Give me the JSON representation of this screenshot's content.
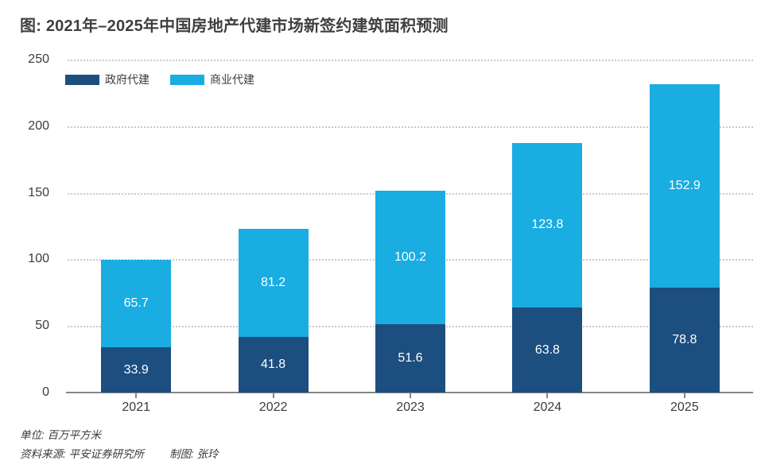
{
  "title": "图: 2021年–2025年中国房地产代建市场新签约建筑面积预测",
  "footer": {
    "unit": "单位: 百万平方米",
    "source": "资料来源: 平安证券研究所",
    "credit": "制图: 张玲"
  },
  "colors": {
    "government": "#1c4e7f",
    "commercial": "#19ade2",
    "axis_line": "#868686",
    "gridline": "#c9c9c9",
    "text": "#3c3c3c",
    "value_label": "#ffffff"
  },
  "chart_data": {
    "type": "bar",
    "stacked": true,
    "title": "图: 2021年–2025年中国房地产代建市场新签约建筑面积预测",
    "xlabel": "",
    "ylabel": "",
    "unit": "百万平方米",
    "categories": [
      "2021",
      "2022",
      "2023",
      "2024",
      "2025"
    ],
    "series": [
      {
        "name": "政府代建",
        "color": "#1c4e7f",
        "values": [
          33.9,
          41.8,
          51.6,
          63.8,
          78.8
        ]
      },
      {
        "name": "商业代建",
        "color": "#19ade2",
        "values": [
          65.7,
          81.2,
          100.2,
          123.8,
          152.9
        ]
      }
    ],
    "ylim": [
      0,
      250
    ],
    "yticks": [
      0,
      50,
      100,
      150,
      200,
      250
    ],
    "grid": "horizontal-dotted",
    "legend_position": "top-left",
    "value_labels": "inside-white"
  }
}
